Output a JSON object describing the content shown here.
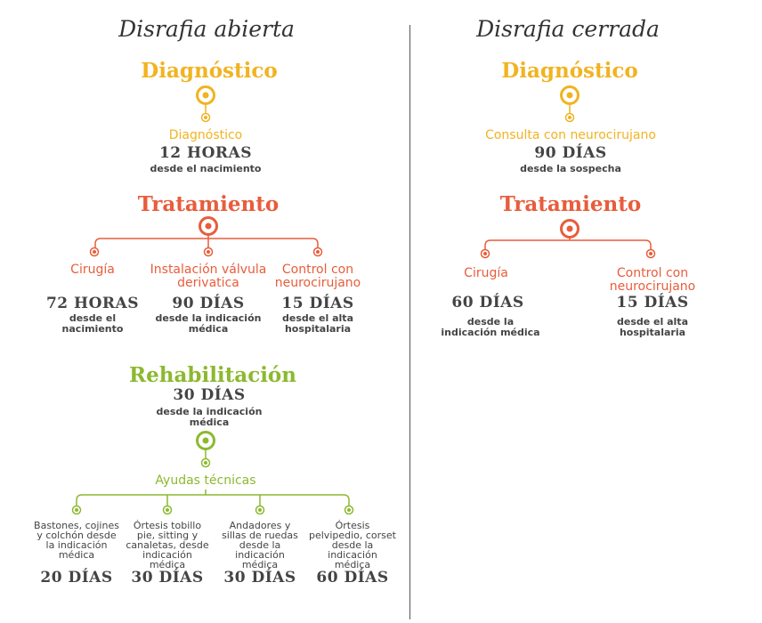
{
  "colors": {
    "yellow": "#f1b320",
    "orange": "#e85d3b",
    "green": "#8cb930",
    "text": "#444444",
    "divider": "#555555"
  },
  "left": {
    "title": "Disrafia abierta",
    "diagnostico": {
      "heading": "Diagnóstico",
      "label": "Diagnóstico",
      "value": "12 HORAS",
      "sub": "desde el nacimiento"
    },
    "tratamiento": {
      "heading": "Tratamiento",
      "items": [
        {
          "label": "Cirugía",
          "value": "72 HORAS",
          "sub": "desde el\nnacimiento"
        },
        {
          "label": "Instalación válvula\nderivatica",
          "value": "90 DÍAS",
          "sub": "desde la indicación\nmédica"
        },
        {
          "label": "Control con\nneurocirujano",
          "value": "15 DÍAS",
          "sub": "desde el alta\nhospitalaria"
        }
      ]
    },
    "rehabilitacion": {
      "heading": "Rehabilitación",
      "value": "30 DÍAS",
      "sub": "desde la indicación\nmédica",
      "ayudas": {
        "label": "Ayudas técnicas",
        "items": [
          {
            "text": "Bastones, cojines\ny colchón desde\nla indicación\nmédica",
            "value": "20 DÍAS"
          },
          {
            "text": "Órtesis tobillo\npie, sitting y\ncanaletas, desde\nindicación\nmédica",
            "value": "30 DÍAS"
          },
          {
            "text": "Andadores y\nsillas de ruedas\ndesde la\nindicación\nmédica",
            "value": "30 DÍAS"
          },
          {
            "text": "Órtesis\npelvipedio, corset\ndesde la\nindicación\nmédica",
            "value": "60 DÍAS"
          }
        ]
      }
    }
  },
  "right": {
    "title": "Disrafia cerrada",
    "diagnostico": {
      "heading": "Diagnóstico",
      "label": "Consulta con neurocirujano",
      "value": "90 DÍAS",
      "sub": "desde la sospecha"
    },
    "tratamiento": {
      "heading": "Tratamiento",
      "items": [
        {
          "label": "Cirugía",
          "value": "60 DÍAS",
          "sub": "desde la\nindicación médica"
        },
        {
          "label": "Control con\nneurocirujano",
          "value": "15 DÍAS",
          "sub": "desde el alta\nhospitalaria"
        }
      ]
    }
  }
}
